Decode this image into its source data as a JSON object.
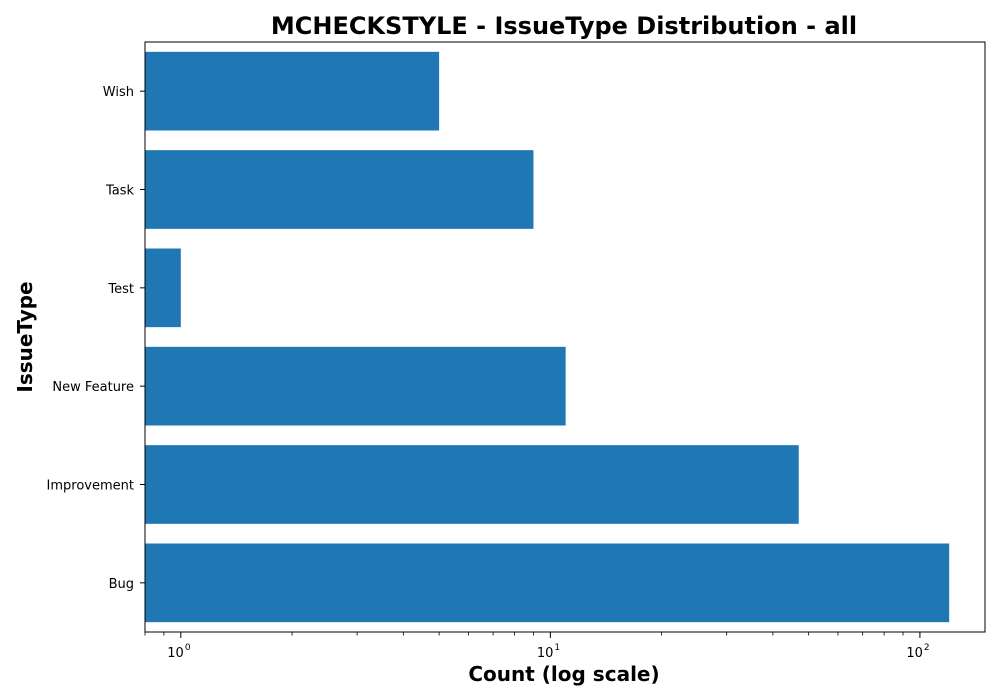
{
  "chart_data": {
    "type": "bar",
    "orientation": "horizontal",
    "title": "MCHECKSTYLE - IssueType Distribution - all",
    "xlabel": "Count (log scale)",
    "ylabel": "IssueType",
    "xscale": "log",
    "xlim": [
      0.8,
      150
    ],
    "categories": [
      "Bug",
      "Improvement",
      "New Feature",
      "Test",
      "Task",
      "Wish"
    ],
    "values": [
      120,
      47,
      11,
      1,
      9,
      5
    ],
    "x_ticks": [
      {
        "value": 1,
        "base": "10",
        "exp": "0"
      },
      {
        "value": 10,
        "base": "10",
        "exp": "1"
      },
      {
        "value": 100,
        "base": "10",
        "exp": "2"
      }
    ],
    "grid": false,
    "bar_color": "#1f77b4"
  }
}
